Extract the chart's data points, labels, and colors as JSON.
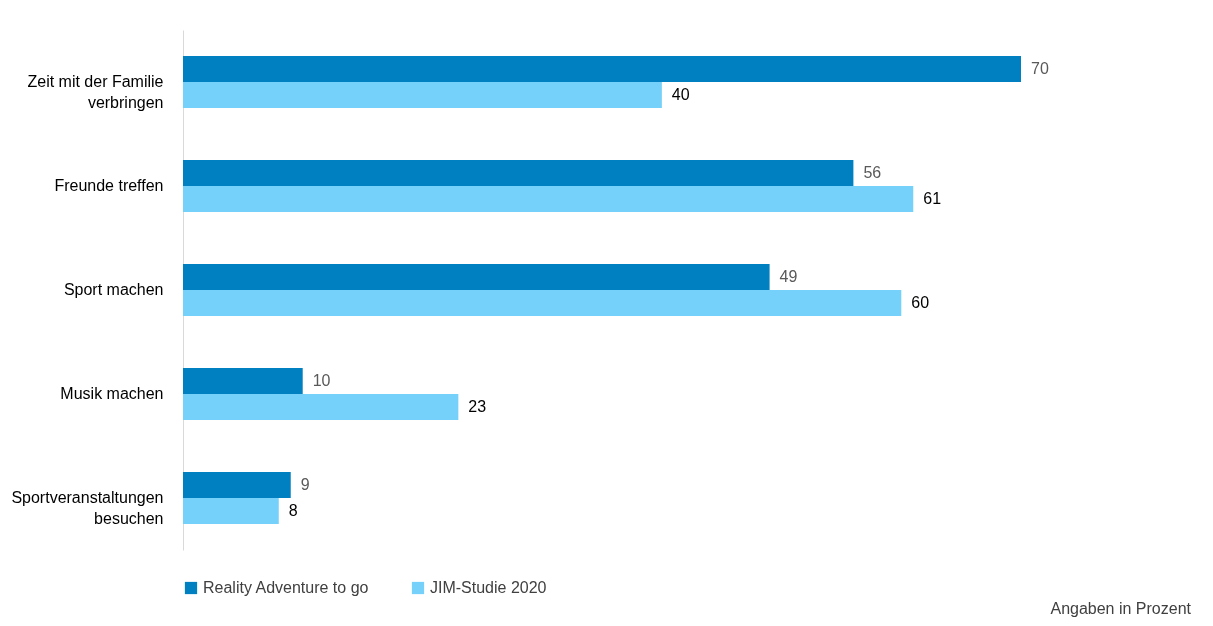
{
  "chart_data": {
    "type": "bar",
    "orientation": "horizontal",
    "categories": [
      "Zeit mit der Familie verbringen",
      "Freunde treffen",
      "Sport machen",
      "Musik machen",
      "Sportveranstaltungen besuchen"
    ],
    "series": [
      {
        "name": "Reality Adventure to go",
        "color": "#0080c0",
        "values": [
          70,
          56,
          49,
          10,
          9
        ]
      },
      {
        "name": "JIM-Studie 2020",
        "color": "#75d0fa",
        "values": [
          40,
          61,
          60,
          23,
          8
        ]
      }
    ],
    "data_labels": true,
    "legend": "bottom",
    "annotations": [
      "Angaben in Prozent"
    ]
  }
}
